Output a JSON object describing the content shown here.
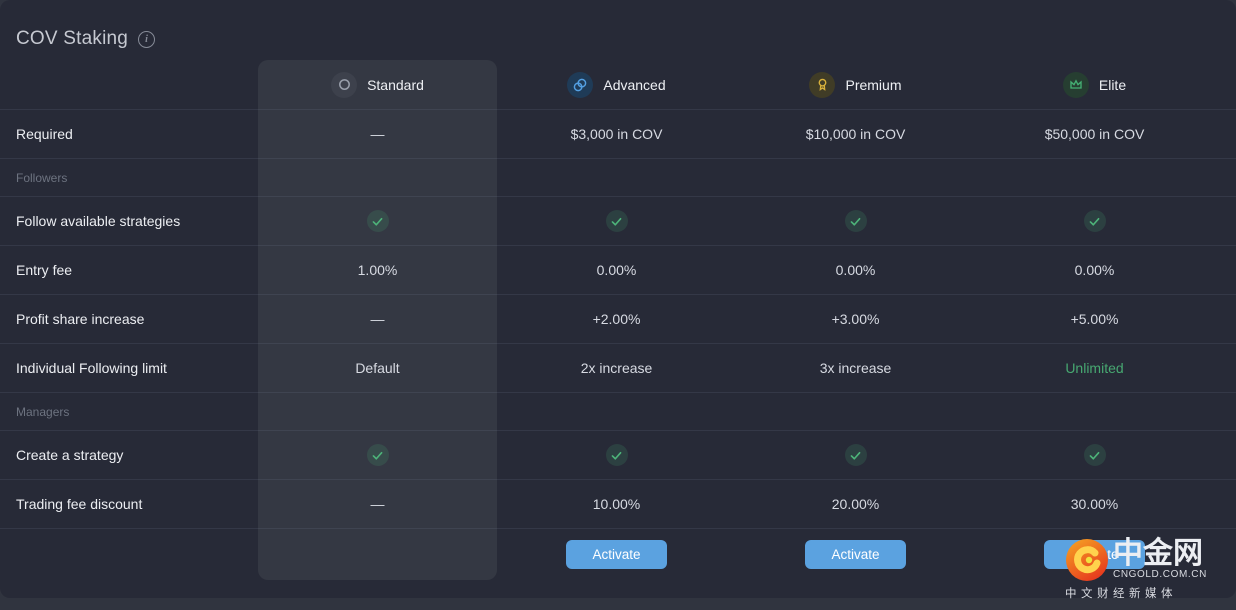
{
  "page": {
    "title": "COV Staking"
  },
  "tiers": [
    {
      "label": "Standard",
      "icon": "ring-icon",
      "icon_color": "#9aa0ac",
      "icon_bg": "#3d414c",
      "highlighted": true
    },
    {
      "label": "Advanced",
      "icon": "links-icon",
      "icon_color": "#54a0e2",
      "icon_bg": "#1f3b57",
      "highlighted": false
    },
    {
      "label": "Premium",
      "icon": "medal-icon",
      "icon_color": "#d8b13c",
      "icon_bg": "#403c26",
      "highlighted": false
    },
    {
      "label": "Elite",
      "icon": "crown-icon",
      "icon_color": "#45b074",
      "icon_bg": "#263e31",
      "highlighted": false
    }
  ],
  "rows": [
    {
      "type": "data",
      "label": "Required",
      "values": [
        {
          "text": "—"
        },
        {
          "text": "$3,000 in COV"
        },
        {
          "text": "$10,000 in COV"
        },
        {
          "text": "$50,000 in COV"
        }
      ]
    },
    {
      "type": "section",
      "label": "Followers"
    },
    {
      "type": "data",
      "label": "Follow available strategies",
      "values": [
        {
          "icon": "check-icon"
        },
        {
          "icon": "check-icon"
        },
        {
          "icon": "check-icon"
        },
        {
          "icon": "check-icon"
        }
      ]
    },
    {
      "type": "data",
      "label": "Entry fee",
      "values": [
        {
          "text": "1.00%"
        },
        {
          "text": "0.00%"
        },
        {
          "text": "0.00%"
        },
        {
          "text": "0.00%"
        }
      ]
    },
    {
      "type": "data",
      "label": "Profit share increase",
      "values": [
        {
          "text": "—"
        },
        {
          "text": "+2.00%"
        },
        {
          "text": "+3.00%"
        },
        {
          "text": "+5.00%"
        }
      ]
    },
    {
      "type": "data",
      "label": "Individual Following limit",
      "values": [
        {
          "text": "Default"
        },
        {
          "text": "2x increase"
        },
        {
          "text": "3x increase"
        },
        {
          "text": "Unlimited",
          "accent": true
        }
      ]
    },
    {
      "type": "section",
      "label": "Managers"
    },
    {
      "type": "data",
      "label": "Create a strategy",
      "values": [
        {
          "icon": "check-icon"
        },
        {
          "icon": "check-icon"
        },
        {
          "icon": "check-icon"
        },
        {
          "icon": "check-icon"
        }
      ]
    },
    {
      "type": "data",
      "label": "Trading fee discount",
      "values": [
        {
          "text": "—"
        },
        {
          "text": "10.00%"
        },
        {
          "text": "20.00%"
        },
        {
          "text": "30.00%"
        }
      ]
    }
  ],
  "actions": {
    "activate_label": "Activate",
    "per_tier": [
      false,
      true,
      true,
      true
    ]
  },
  "watermark": {
    "brand": "中金网",
    "domain": "CNGOLD.COM.CN",
    "tagline": "中文财经新媒体"
  },
  "colors": {
    "card_bg": "#272a37",
    "highlight_col_bg": "#343843",
    "accent_blue": "#5ba2e0",
    "accent_green": "#47a871",
    "check_green": "#4db379",
    "logo_orange_top": "#f6a723",
    "logo_orange_bottom": "#e73c1e"
  }
}
